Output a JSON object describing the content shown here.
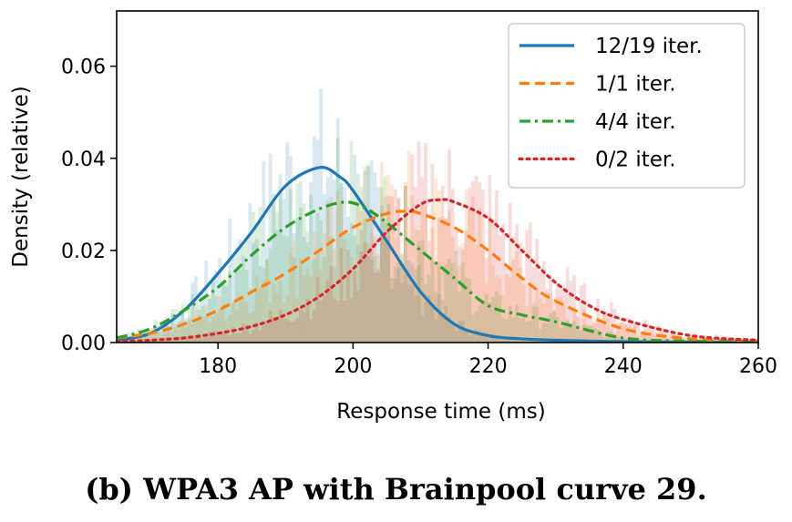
{
  "caption": "(b) WPA3 AP with Brainpool curve 29.",
  "chart_data": {
    "type": "line",
    "title": "",
    "xlabel": "Response time (ms)",
    "ylabel": "Density (relative)",
    "xlim": [
      165,
      260
    ],
    "ylim": [
      0,
      0.072
    ],
    "xticks": [
      180,
      200,
      220,
      240,
      260
    ],
    "xtick_labels": [
      "180",
      "200",
      "220",
      "240",
      "260"
    ],
    "yticks": [
      0.0,
      0.02,
      0.04,
      0.06
    ],
    "ytick_labels": [
      "0.00",
      "0.02",
      "0.04",
      "0.06"
    ],
    "legend_position": "top-right",
    "series": [
      {
        "name": "12/19 iter.",
        "color": "#1f77b4",
        "dash": "solid",
        "hist_color": "#1f77b4",
        "x": [
          165,
          170,
          175,
          180,
          185,
          190,
          195,
          198,
          200,
          205,
          210,
          215,
          220,
          225,
          230,
          240,
          250,
          260
        ],
        "y": [
          0.0005,
          0.002,
          0.007,
          0.015,
          0.024,
          0.034,
          0.038,
          0.036,
          0.033,
          0.022,
          0.011,
          0.004,
          0.0015,
          0.0008,
          0.0005,
          0.0002,
          0.0001,
          0.0
        ]
      },
      {
        "name": "1/1 iter.",
        "color": "#ff7f0e",
        "dash": "dashed",
        "hist_color": "#ff7f0e",
        "x": [
          165,
          170,
          175,
          180,
          185,
          190,
          195,
          200,
          205,
          208,
          210,
          215,
          220,
          225,
          230,
          240,
          250,
          260
        ],
        "y": [
          0.001,
          0.002,
          0.004,
          0.007,
          0.011,
          0.015,
          0.02,
          0.025,
          0.028,
          0.0285,
          0.028,
          0.025,
          0.02,
          0.014,
          0.009,
          0.003,
          0.0008,
          0.0003
        ]
      },
      {
        "name": "4/4 iter.",
        "color": "#2ca02c",
        "dash": "dashdot",
        "hist_color": "#2ca02c",
        "x": [
          165,
          170,
          175,
          180,
          185,
          190,
          195,
          199,
          202,
          205,
          210,
          215,
          220,
          225,
          230,
          240,
          250,
          260
        ],
        "y": [
          0.001,
          0.003,
          0.007,
          0.012,
          0.019,
          0.025,
          0.029,
          0.0305,
          0.029,
          0.026,
          0.02,
          0.014,
          0.008,
          0.006,
          0.0045,
          0.001,
          0.0003,
          0.0001
        ]
      },
      {
        "name": "0/2 iter.",
        "color": "#d62728",
        "dash": "dotted",
        "hist_color": "#d62728",
        "x": [
          165,
          170,
          175,
          180,
          185,
          190,
          195,
          200,
          205,
          210,
          213,
          215,
          220,
          225,
          230,
          235,
          240,
          250,
          260
        ],
        "y": [
          0.0002,
          0.0005,
          0.001,
          0.002,
          0.0035,
          0.006,
          0.01,
          0.016,
          0.024,
          0.03,
          0.031,
          0.0305,
          0.027,
          0.02,
          0.013,
          0.008,
          0.005,
          0.0015,
          0.0005
        ]
      }
    ]
  }
}
